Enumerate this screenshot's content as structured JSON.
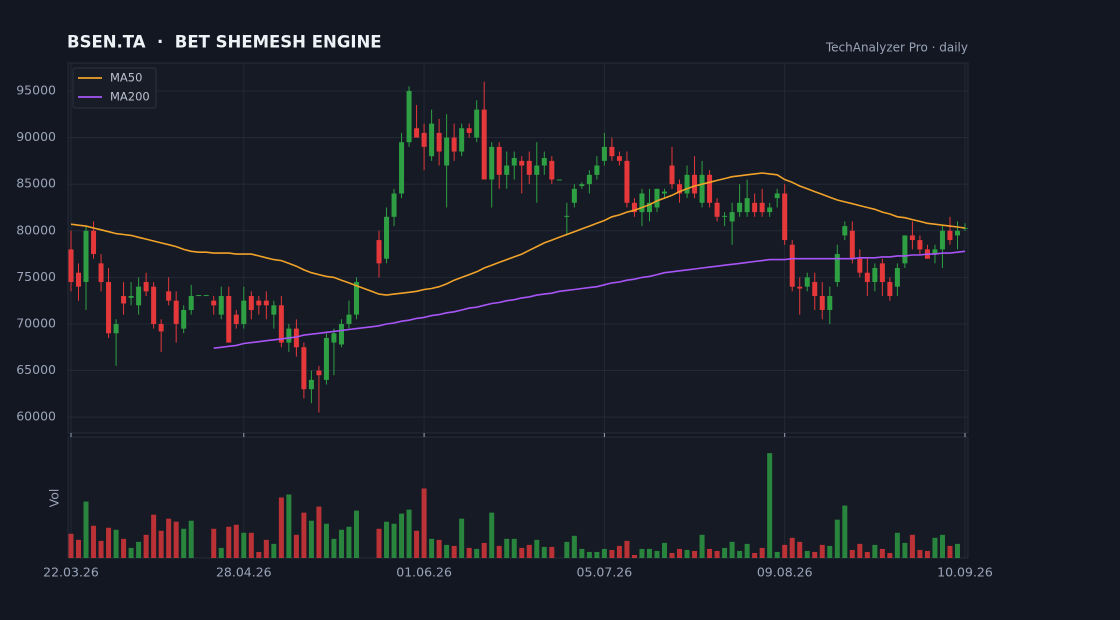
{
  "chart_data": {
    "type": "candlestick",
    "title": "BSEN.TA  ·  BET SHEMESH ENGINE",
    "subtitle": "TechAnalyzer Pro · daily",
    "volume_label": "Vol",
    "categories": [
      "22.03.26",
      null,
      null,
      null,
      null,
      null,
      null,
      null,
      null,
      null,
      null,
      null,
      null,
      null,
      null,
      null,
      null,
      null,
      null,
      null,
      null,
      null,
      null,
      "28.04.26",
      null,
      null,
      null,
      null,
      null,
      null,
      null,
      null,
      null,
      null,
      null,
      null,
      null,
      null,
      null,
      null,
      null,
      null,
      null,
      null,
      null,
      null,
      null,
      "01.06.26",
      null,
      null,
      null,
      null,
      null,
      null,
      null,
      null,
      null,
      null,
      null,
      null,
      null,
      null,
      null,
      null,
      null,
      null,
      null,
      null,
      null,
      null,
      null,
      "05.07.26",
      null,
      null,
      null,
      null,
      null,
      null,
      null,
      null,
      null,
      null,
      null,
      null,
      null,
      null,
      null,
      null,
      null,
      null,
      null,
      null,
      null,
      null,
      null,
      "09.08.26",
      null,
      null,
      null,
      null,
      null,
      null,
      null,
      null,
      null,
      null,
      null,
      null,
      null,
      null,
      null,
      null,
      null,
      null,
      null,
      null,
      null,
      null,
      null,
      "10.09.26"
    ],
    "open": [
      78000,
      75500,
      74500,
      80000,
      76500,
      74500,
      69000,
      73000,
      72800,
      72000,
      74500,
      74000,
      70000,
      73500,
      72500,
      69500,
      71500,
      73100,
      73100,
      72500,
      71000,
      73000,
      71000,
      70000,
      73000,
      72500,
      72500,
      71000,
      72000,
      68000,
      69500,
      67500,
      63000,
      65000,
      64000,
      68000,
      67800,
      70000,
      71000,
      null,
      null,
      79000,
      77000,
      81500,
      84000,
      89500,
      91000,
      90500,
      88000,
      90500,
      87000,
      90000,
      88500,
      91000,
      90000,
      93000,
      85500,
      89000,
      86000,
      87000,
      87500,
      87500,
      86000,
      87000,
      87500,
      85500,
      81500,
      83000,
      84800,
      85000,
      86000,
      87500,
      89000,
      88000,
      87500,
      83000,
      82000,
      82000,
      82500,
      84000,
      87000,
      85000,
      84000,
      86000,
      83000,
      86000,
      83000,
      81500,
      81000,
      82000,
      82000,
      83000,
      83000,
      82000,
      83500,
      84000,
      78500,
      74000,
      74000,
      74500,
      73000,
      71500,
      74500,
      79500,
      80000,
      77000,
      75500,
      74500,
      76500,
      74500,
      74000,
      76500,
      79500,
      79000,
      78000,
      77500,
      78000,
      80000,
      79500,
      80200
    ],
    "high": [
      80000,
      76500,
      80500,
      81000,
      77500,
      76000,
      70500,
      74500,
      74500,
      75000,
      75500,
      74500,
      70500,
      75000,
      73500,
      72000,
      74200,
      73100,
      73100,
      73000,
      74000,
      74000,
      71500,
      74000,
      73500,
      73000,
      73500,
      72500,
      73000,
      70000,
      70500,
      68000,
      65000,
      65500,
      69000,
      69500,
      70500,
      72500,
      75000,
      null,
      null,
      80000,
      82500,
      84500,
      90500,
      95500,
      93500,
      91500,
      93000,
      92000,
      92500,
      91500,
      91500,
      91500,
      94000,
      96000,
      89500,
      89500,
      88500,
      88500,
      88000,
      88500,
      89500,
      88500,
      88000,
      85500,
      83000,
      85000,
      85200,
      86500,
      88000,
      90500,
      90000,
      88500,
      88500,
      83500,
      84500,
      84500,
      84500,
      84500,
      89000,
      85500,
      87000,
      88000,
      87500,
      86500,
      83500,
      82000,
      83000,
      85000,
      85500,
      84000,
      84500,
      83000,
      84500,
      85000,
      79000,
      75000,
      75500,
      75500,
      74500,
      74000,
      78500,
      81000,
      81000,
      78000,
      77000,
      76500,
      77000,
      75000,
      76500,
      79500,
      81000,
      79500,
      78500,
      78500,
      80500,
      81500,
      81000,
      80800
    ],
    "low": [
      73500,
      72500,
      71500,
      77000,
      73500,
      68500,
      65500,
      71000,
      72000,
      71000,
      73000,
      69500,
      67000,
      72000,
      68000,
      69000,
      71000,
      73100,
      73100,
      71000,
      70500,
      68000,
      69500,
      69500,
      70500,
      71000,
      70500,
      69500,
      67500,
      67000,
      66500,
      62000,
      61500,
      60500,
      63500,
      64500,
      67500,
      69500,
      70500,
      null,
      null,
      75000,
      76500,
      80500,
      83500,
      89000,
      90000,
      86500,
      87500,
      87000,
      82500,
      87500,
      88000,
      90000,
      89500,
      85500,
      82500,
      84500,
      84500,
      85500,
      84000,
      85000,
      83000,
      86000,
      85000,
      85500,
      79500,
      82500,
      84500,
      84000,
      85500,
      87000,
      87500,
      87000,
      82500,
      81500,
      80500,
      81000,
      82000,
      83500,
      84500,
      83000,
      83500,
      83500,
      82500,
      82500,
      81000,
      80500,
      78500,
      81500,
      81500,
      81500,
      81500,
      81500,
      82500,
      78500,
      73500,
      71000,
      73500,
      71500,
      70500,
      70000,
      74000,
      79000,
      76500,
      75000,
      73000,
      73500,
      73000,
      72500,
      73000,
      76000,
      78000,
      77500,
      77000,
      76500,
      76000,
      78500,
      78000,
      80000
    ],
    "close": [
      74500,
      74000,
      80000,
      77500,
      74500,
      69000,
      70000,
      72200,
      73000,
      74000,
      73500,
      70000,
      69200,
      72500,
      70000,
      71500,
      73000,
      73100,
      73100,
      72000,
      73000,
      68000,
      70000,
      72500,
      71500,
      72000,
      72000,
      72000,
      68000,
      69500,
      67500,
      63000,
      64000,
      64500,
      68500,
      69000,
      70000,
      71000,
      74500,
      null,
      null,
      76500,
      81500,
      84000,
      89500,
      95000,
      90000,
      89000,
      91500,
      88500,
      90000,
      88500,
      91000,
      90500,
      93000,
      85500,
      89000,
      86000,
      87000,
      87800,
      87000,
      86000,
      87000,
      87800,
      85500,
      85500,
      81600,
      84500,
      85000,
      86000,
      87000,
      89000,
      88000,
      87500,
      83000,
      82000,
      84000,
      83000,
      84500,
      84200,
      85000,
      84000,
      86000,
      84000,
      86000,
      83000,
      81500,
      81600,
      82000,
      83000,
      83500,
      82000,
      82000,
      82500,
      84000,
      79000,
      74000,
      73800,
      75000,
      73000,
      71500,
      73000,
      77500,
      80500,
      77000,
      75500,
      74500,
      76000,
      74500,
      73000,
      76000,
      79500,
      79000,
      78000,
      77000,
      78000,
      80000,
      79000,
      80000,
      80300
    ],
    "volume": [
      24,
      18,
      56,
      32,
      17,
      30,
      28,
      19,
      10,
      16,
      23,
      43,
      27,
      39,
      36,
      29,
      37,
      0,
      0,
      29,
      10,
      31,
      33,
      25,
      25,
      6,
      18,
      14,
      60,
      63,
      23,
      45,
      37,
      51,
      34,
      19,
      28,
      31,
      47,
      null,
      null,
      29,
      36,
      34,
      44,
      48,
      27,
      69,
      19,
      18,
      13,
      12,
      39,
      10,
      9,
      15,
      45,
      12,
      19,
      19,
      10,
      13,
      18,
      11,
      11,
      0,
      16,
      22,
      9,
      6,
      6,
      9,
      8,
      12,
      17,
      3,
      9,
      9,
      7,
      15,
      5,
      9,
      8,
      7,
      23,
      9,
      7,
      10,
      16,
      7,
      14,
      5,
      10,
      104,
      6,
      13,
      20,
      16,
      7,
      6,
      13,
      12,
      38,
      52,
      8,
      14,
      6,
      13,
      9,
      5,
      25,
      15,
      23,
      8,
      7,
      20,
      23,
      12,
      14,
      0
    ],
    "up_color": "#2ea043",
    "down_color": "#e5383b",
    "series": [
      {
        "name": "MA50",
        "color": "#f0a22a",
        "values": [
          80700,
          80600,
          80500,
          80300,
          80100,
          79900,
          79700,
          79600,
          79500,
          79300,
          79100,
          78900,
          78700,
          78500,
          78300,
          78000,
          77800,
          77700,
          77700,
          77600,
          77600,
          77600,
          77500,
          77500,
          77500,
          77300,
          77100,
          76900,
          76800,
          76500,
          76200,
          75800,
          75500,
          75300,
          75100,
          75000,
          74700,
          74400,
          74100,
          73800,
          73500,
          73200,
          73100,
          73200,
          73300,
          73400,
          73500,
          73700,
          73800,
          74000,
          74300,
          74700,
          75000,
          75300,
          75600,
          76000,
          76300,
          76600,
          76900,
          77200,
          77500,
          77900,
          78300,
          78700,
          79000,
          79300,
          79600,
          79900,
          80200,
          80500,
          80800,
          81100,
          81500,
          81700,
          82000,
          82200,
          82500,
          82800,
          83200,
          83500,
          83800,
          84200,
          84500,
          84800,
          85000,
          85200,
          85400,
          85600,
          85800,
          85900,
          86000,
          86100,
          86200,
          86100,
          86000,
          85500,
          85200,
          84800,
          84500,
          84200,
          83900,
          83600,
          83300,
          83100,
          82900,
          82700,
          82500,
          82300,
          82000,
          81800,
          81500,
          81400,
          81200,
          81000,
          80800,
          80700,
          80600,
          80500,
          80400,
          80300
        ]
      },
      {
        "name": "MA200",
        "color": "#a855f7",
        "values": [
          null,
          null,
          null,
          null,
          null,
          null,
          null,
          null,
          null,
          null,
          null,
          null,
          null,
          null,
          null,
          null,
          null,
          null,
          null,
          67400,
          67500,
          67600,
          67700,
          67900,
          68000,
          68100,
          68200,
          68300,
          68400,
          68500,
          68600,
          68800,
          68900,
          69000,
          69100,
          69200,
          69300,
          69400,
          69500,
          69600,
          69700,
          69800,
          70000,
          70100,
          70300,
          70400,
          70600,
          70700,
          70900,
          71000,
          71200,
          71300,
          71500,
          71700,
          71800,
          72000,
          72200,
          72300,
          72500,
          72600,
          72800,
          72900,
          73100,
          73200,
          73300,
          73500,
          73600,
          73700,
          73800,
          73900,
          74000,
          74200,
          74400,
          74500,
          74700,
          74800,
          75000,
          75100,
          75300,
          75500,
          75600,
          75700,
          75800,
          75900,
          76000,
          76100,
          76200,
          76300,
          76400,
          76500,
          76600,
          76700,
          76800,
          76900,
          76900,
          76900,
          77000,
          77000,
          77000,
          77000,
          77000,
          77000,
          77000,
          77000,
          77000,
          77100,
          77100,
          77100,
          77200,
          77200,
          77300,
          77300,
          77400,
          77400,
          77500,
          77500,
          77600,
          77600,
          77700,
          77800
        ]
      }
    ],
    "ylim": [
      58300,
      98000
    ],
    "yticks": [
      60000,
      65000,
      70000,
      75000,
      80000,
      85000,
      90000,
      95000
    ],
    "volume_ylim": [
      0,
      120
    ],
    "grid": true,
    "legend": "upper left"
  }
}
